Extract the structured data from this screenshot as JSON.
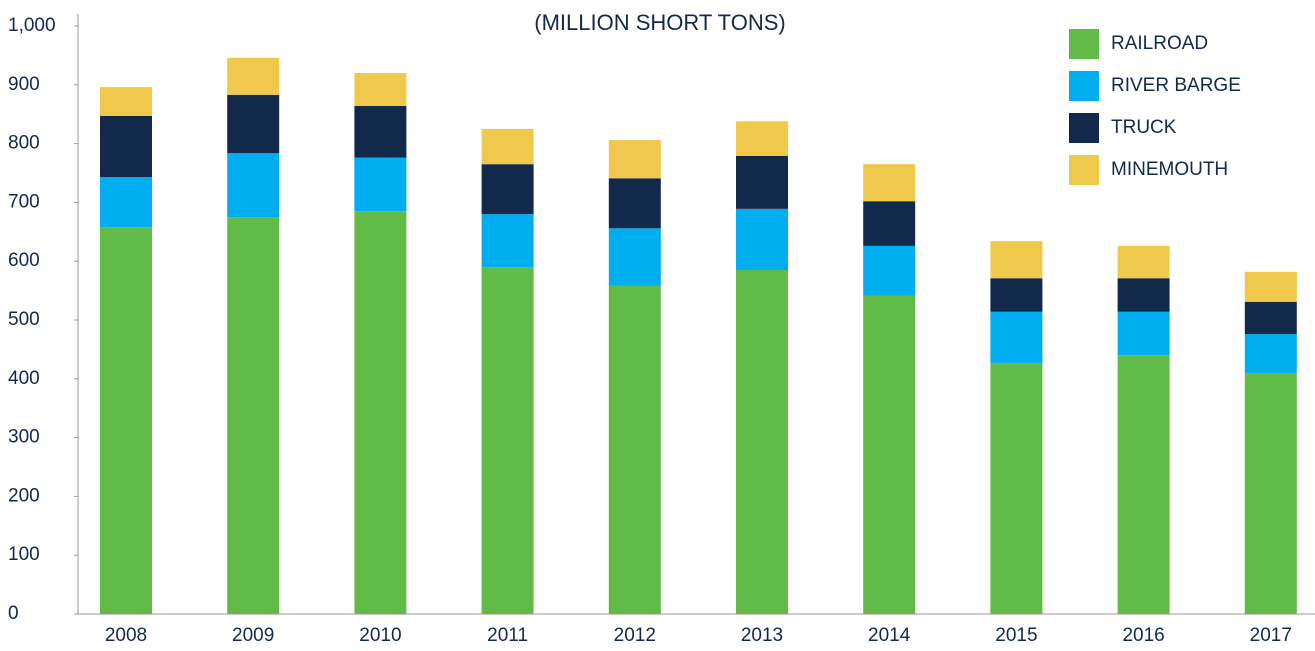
{
  "chart_data": {
    "type": "stacked_bar",
    "title": "(MILLION SHORT TONS)",
    "categories": [
      "2008",
      "2009",
      "2010",
      "2011",
      "2012",
      "2013",
      "2014",
      "2015",
      "2016",
      "2017"
    ],
    "series": [
      {
        "name": "RAILROAD",
        "color": "#62bb46",
        "values": [
          658,
          675,
          685,
          590,
          558,
          585,
          541,
          427,
          440,
          410
        ]
      },
      {
        "name": "RIVER BARGE",
        "color": "#00aeef",
        "values": [
          85,
          109,
          91,
          90,
          98,
          104,
          85,
          87,
          74,
          66
        ]
      },
      {
        "name": "TRUCK",
        "color": "#13294b",
        "values": [
          104,
          99,
          88,
          85,
          85,
          90,
          76,
          57,
          57,
          55
        ]
      },
      {
        "name": "MINEMOUTH",
        "color": "#f0c84b",
        "values": [
          49,
          63,
          56,
          60,
          65,
          59,
          63,
          63,
          55,
          51
        ]
      }
    ],
    "ylim": [
      0,
      1000
    ],
    "yticks": [
      0,
      100,
      200,
      300,
      400,
      500,
      600,
      700,
      800,
      900,
      {
        "value": 1000,
        "label": "1,000"
      }
    ],
    "legend": "top-right"
  }
}
